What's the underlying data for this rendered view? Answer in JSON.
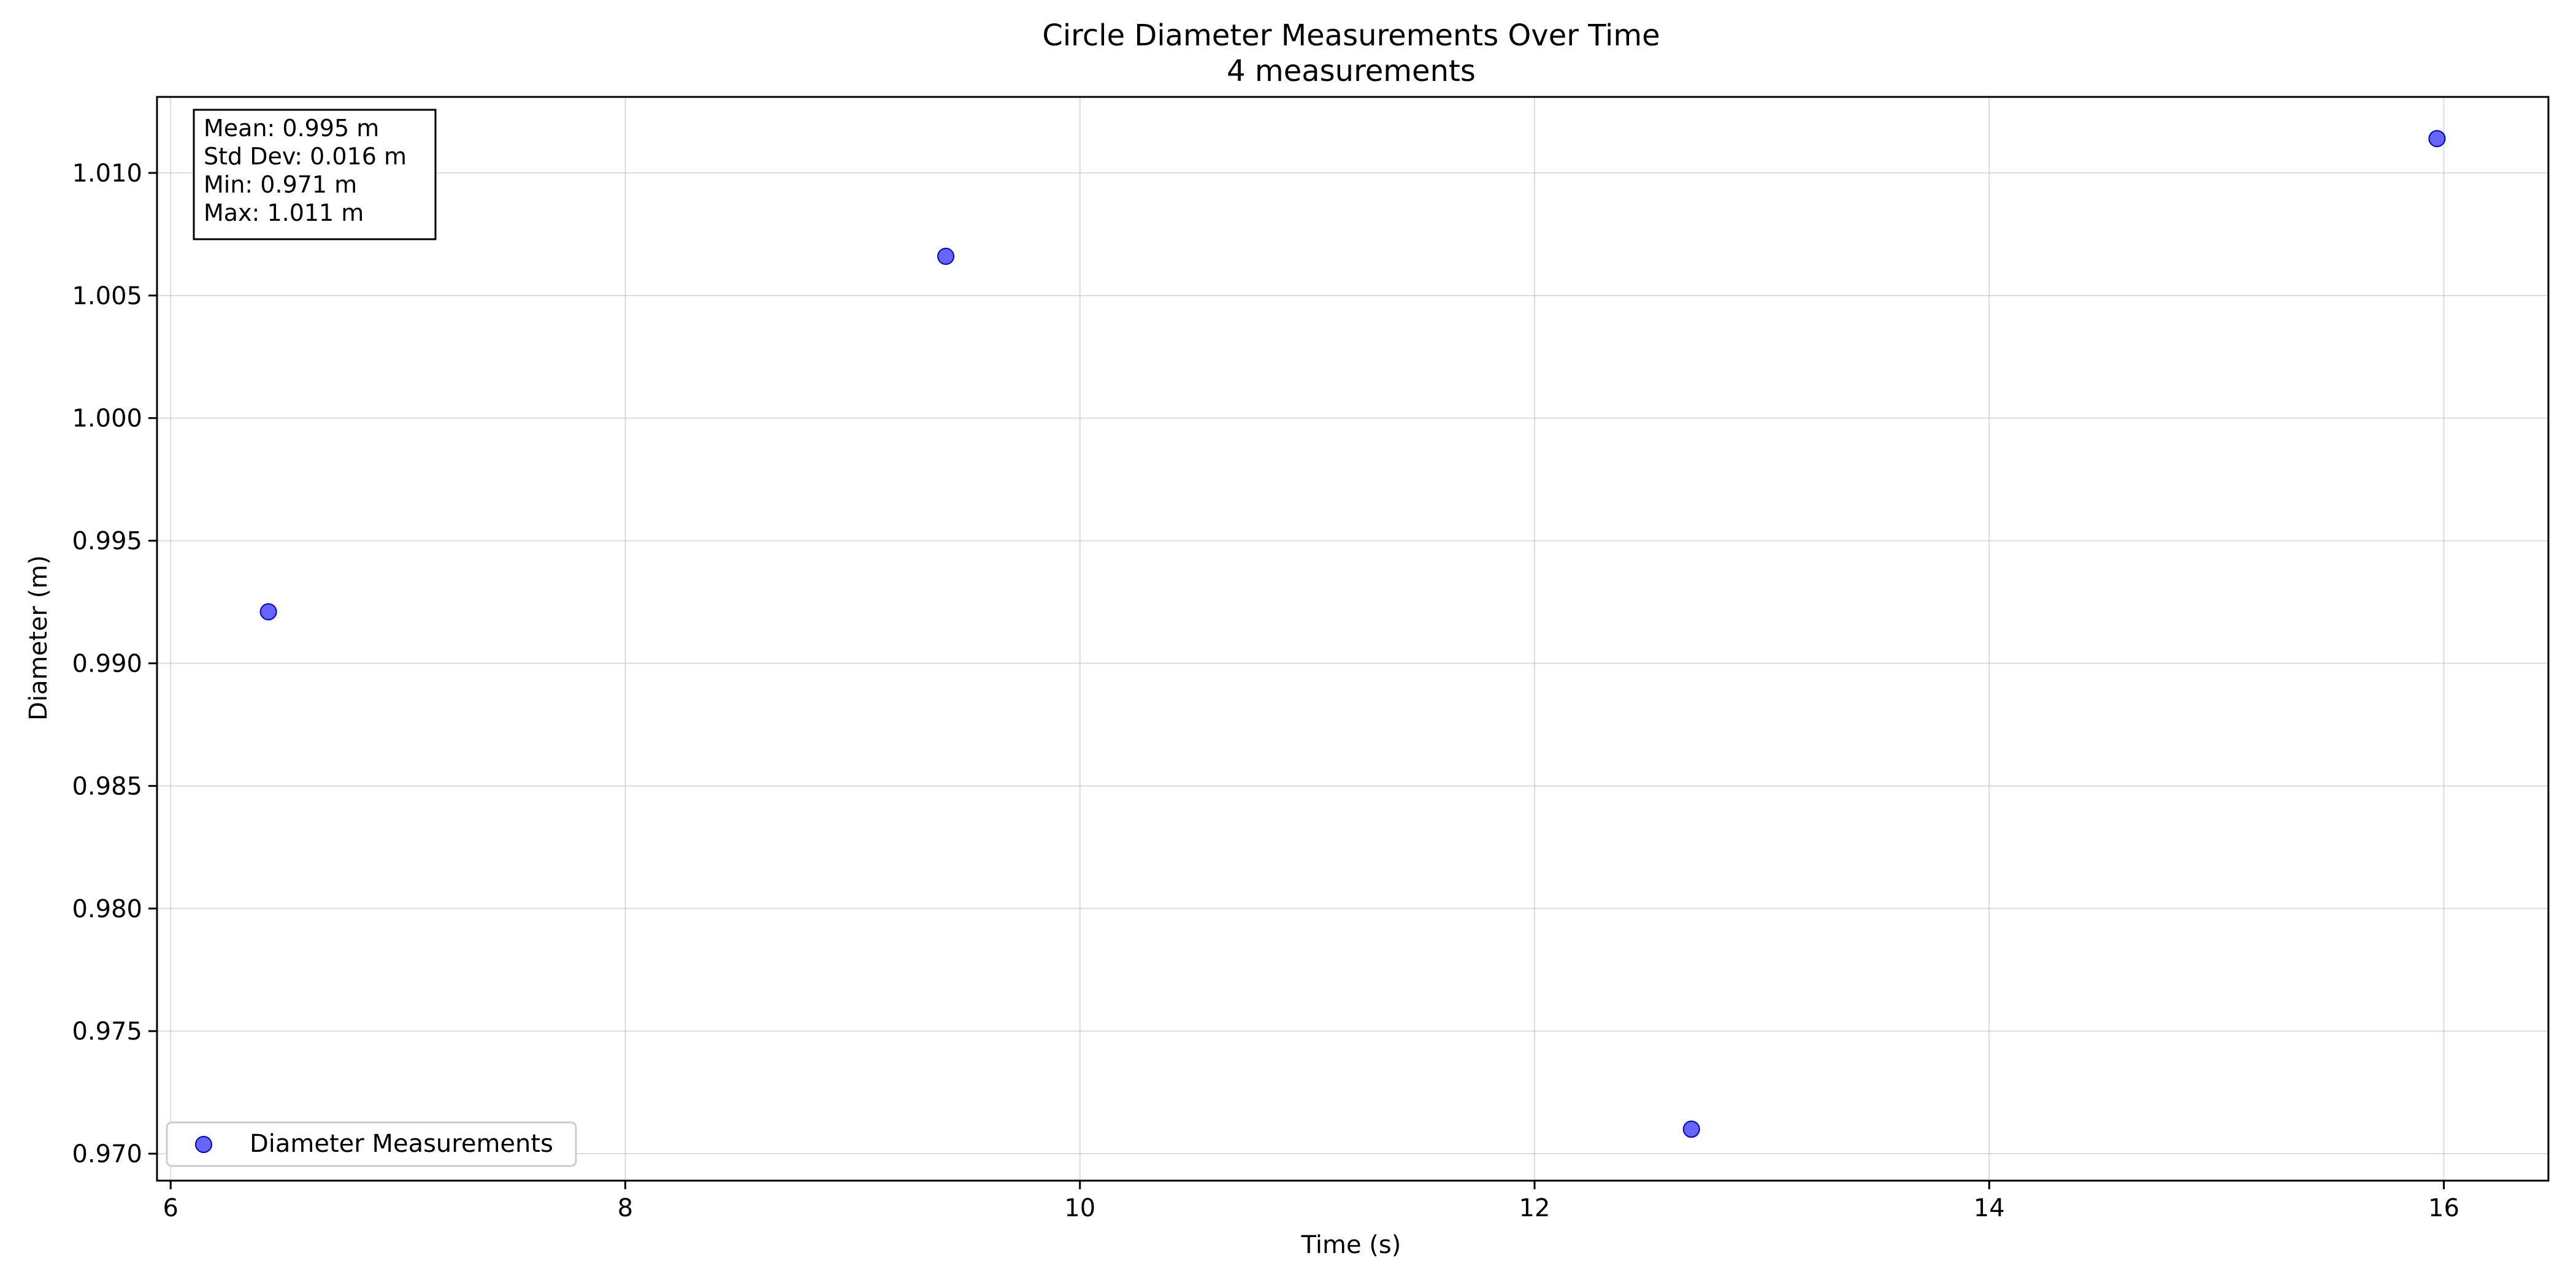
{
  "chart_data": {
    "type": "scatter",
    "title": "Circle Diameter Measurements Over Time",
    "subtitle": "4 measurements",
    "xlabel": "Time (s)",
    "ylabel": "Diameter (m)",
    "xlim": [
      5.94,
      16.46
    ],
    "ylim": [
      0.9689,
      1.0131
    ],
    "x_ticks": [
      6,
      8,
      10,
      12,
      14,
      16
    ],
    "x_tick_labels": [
      "6",
      "8",
      "10",
      "12",
      "14",
      "16"
    ],
    "y_ticks": [
      0.97,
      0.975,
      0.98,
      0.985,
      0.99,
      0.995,
      1.0,
      1.005,
      1.01
    ],
    "y_tick_labels": [
      "0.970",
      "0.975",
      "0.980",
      "0.985",
      "0.990",
      "0.995",
      "1.000",
      "1.005",
      "1.010"
    ],
    "grid": true,
    "legend_position": "lower-left",
    "series": [
      {
        "name": "Diameter Measurements",
        "color": "#0000ff",
        "points": [
          {
            "x": 6.43,
            "y": 0.9921
          },
          {
            "x": 9.41,
            "y": 1.0066
          },
          {
            "x": 12.69,
            "y": 0.971
          },
          {
            "x": 15.97,
            "y": 1.0114
          }
        ]
      }
    ],
    "stats_box": {
      "lines": [
        "Mean: 0.995 m",
        "Std Dev: 0.016 m",
        "Min: 0.971 m",
        "Max: 1.011 m"
      ]
    }
  }
}
